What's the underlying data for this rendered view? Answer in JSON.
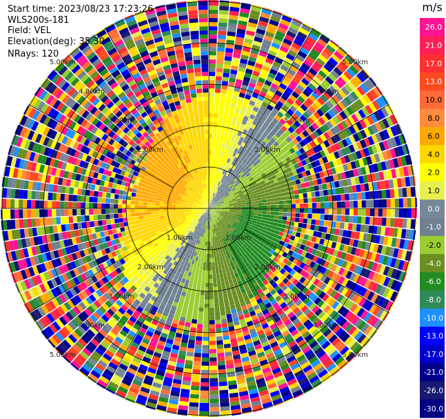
{
  "header": {
    "start_time": "Start time: 2023/08/23 17:23:26",
    "instrument": "WLS200s-181",
    "field": "Field: VEL",
    "elevation": "Elevation(deg): 35.30",
    "nrays": "NRays: 120"
  },
  "chart_data": {
    "type": "heatmap",
    "projection": "polar PPI",
    "field": "VEL",
    "units": "m/s",
    "n_rays": 120,
    "elevation_deg": 35.3,
    "max_range_km": 5.5,
    "ring_labels": [
      "1.00km",
      "2.00km",
      "3.00km",
      "4.00km",
      "5.00km"
    ],
    "ring_ranges_km": [
      1,
      2,
      3,
      4,
      5
    ],
    "spoke_count": 12,
    "grid": true,
    "colorbar": {
      "unit": "m/s",
      "placement": "right",
      "ticks": [
        "26.0",
        "21.0",
        "17.0",
        "13.0",
        "10.0",
        "8.0",
        "6.0",
        "4.0",
        "2.0",
        "1.0",
        "0.0",
        "-1.0",
        "-2.0",
        "-4.0",
        "-6.0",
        "-8.0",
        "-10.0",
        "-13.0",
        "-17.0",
        "-21.0",
        "-26.0",
        "-30.0"
      ],
      "colors": [
        "#ff1493",
        "#ff1e56",
        "#ff3030",
        "#ff4a20",
        "#ff6a3a",
        "#ff8c3c",
        "#ffaa00",
        "#ffd700",
        "#ffff00",
        "#e8f050",
        "#778899",
        "#708090",
        "#9acd32",
        "#6b8e23",
        "#228b22",
        "#2e8b57",
        "#1e90ff",
        "#0000ff",
        "#0000cd",
        "#00008b",
        "#191970",
        "#000080"
      ],
      "extremes": {
        "max": 30.0,
        "min": -30.0
      }
    },
    "data_summary": {
      "clear_air_range_km": [
        0,
        2.6
      ],
      "positive_velocity_sector_deg": [
        200,
        60
      ],
      "negative_velocity_sector_deg": [
        60,
        200
      ],
      "beyond_clear_air": "noise (random velocity values across full colour scale)"
    }
  }
}
